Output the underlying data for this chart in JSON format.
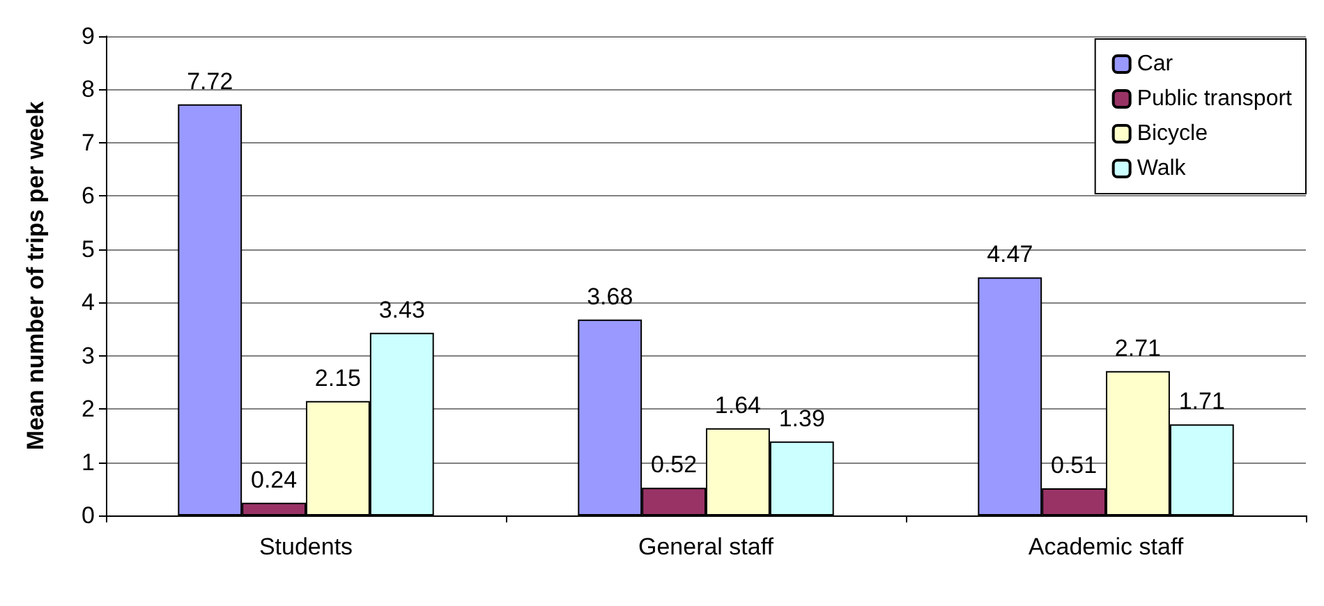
{
  "chart_data": {
    "type": "bar",
    "ylabel": "Mean number of trips per week",
    "categories": [
      "Students",
      "General staff",
      "Academic staff"
    ],
    "series": [
      {
        "name": "Car",
        "color": "#9999ff",
        "values": [
          7.72,
          3.68,
          4.47
        ]
      },
      {
        "name": "Public transport",
        "color": "#993366",
        "values": [
          0.24,
          0.52,
          0.51
        ]
      },
      {
        "name": "Bicycle",
        "color": "#ffffcc",
        "values": [
          2.15,
          1.64,
          2.71
        ]
      },
      {
        "name": "Walk",
        "color": "#ccffff",
        "values": [
          3.43,
          1.39,
          1.71
        ]
      }
    ],
    "ylim": [
      0,
      9
    ],
    "yticks": [
      0,
      1,
      2,
      3,
      4,
      5,
      6,
      7,
      8,
      9
    ],
    "grid": "y",
    "legend": "top right",
    "data_labels": true
  }
}
